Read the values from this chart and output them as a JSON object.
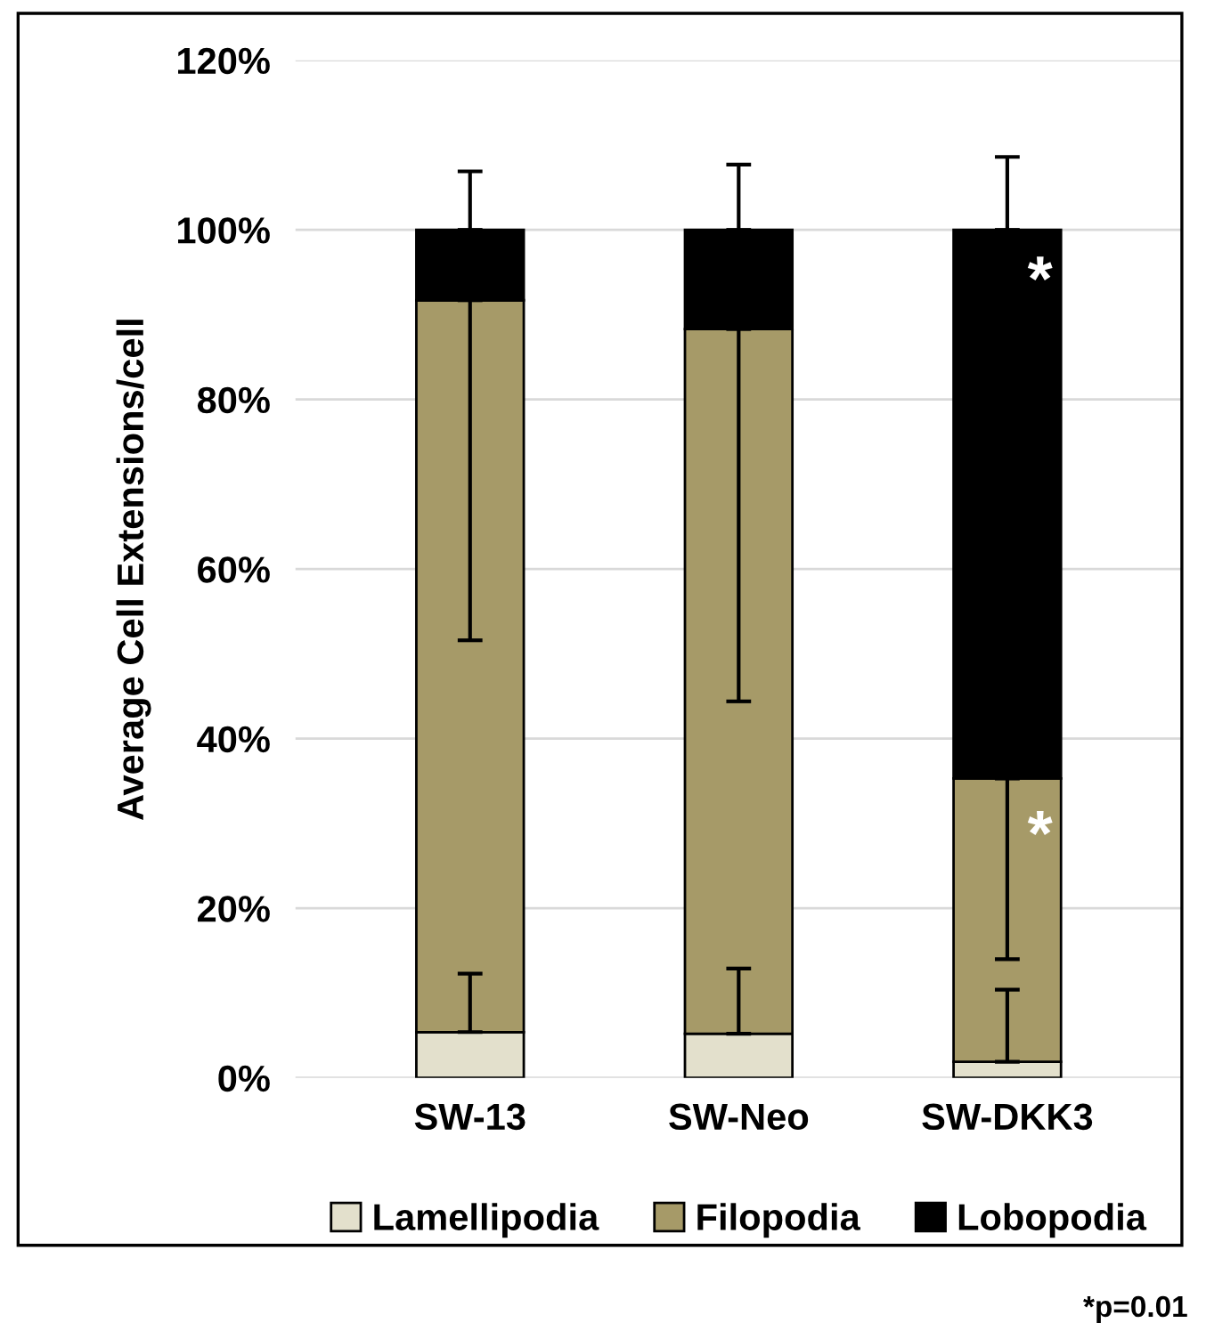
{
  "chart_data": {
    "type": "bar",
    "stacked": true,
    "ylabel": "Average Cell Extensions/cell",
    "categories": [
      "SW-13",
      "SW-Neo",
      "SW-DKK3"
    ],
    "series": [
      {
        "name": "Lamellipodia",
        "color": "#e3e0cc",
        "values": [
          5.4,
          5.2,
          1.9
        ],
        "errors": [
          [
            5.4,
            12.3
          ],
          [
            5.2,
            12.9
          ],
          [
            1.9,
            10.4
          ]
        ]
      },
      {
        "name": "Filopodia",
        "color": "#a69a68",
        "values": [
          86.3,
          83.1,
          33.4
        ],
        "errors": [
          [
            51.6,
            91.7
          ],
          [
            44.4,
            88.3
          ],
          [
            14.0,
            35.3
          ]
        ]
      },
      {
        "name": "Lobopodia",
        "color": "#000000",
        "values": [
          8.3,
          11.7,
          64.7
        ],
        "errors": [
          [
            100,
            106.9
          ],
          [
            100,
            107.7
          ],
          [
            100,
            108.6
          ]
        ]
      }
    ],
    "ylim": [
      0,
      120
    ],
    "yticks": [
      {
        "value": 0,
        "label": "0%"
      },
      {
        "value": 20,
        "label": "20%"
      },
      {
        "value": 40,
        "label": "40%"
      },
      {
        "value": 60,
        "label": "60%"
      },
      {
        "value": 80,
        "label": "80%"
      },
      {
        "value": 100,
        "label": "100%"
      },
      {
        "value": 120,
        "label": "120%"
      }
    ],
    "grid": "y",
    "legend": "bottom",
    "annotations": [
      "*",
      "*",
      "*p=0.01"
    ]
  }
}
